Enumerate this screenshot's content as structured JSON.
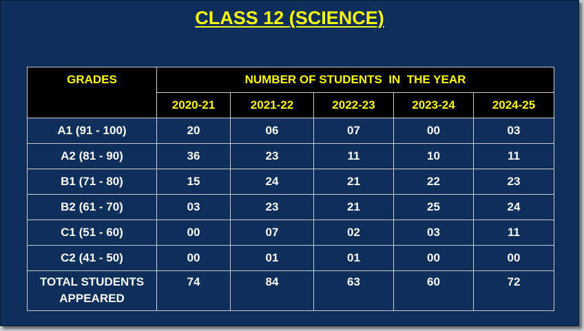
{
  "title": "CLASS 12 (SCIENCE)",
  "table": {
    "grades_header": "GRADES",
    "group_header": "NUMBER OF STUDENTS  IN  THE YEAR",
    "years": [
      "2020-21",
      "2021-22",
      "2022-23",
      "2023-24",
      "2024-25"
    ],
    "rows": [
      {
        "grade": "A1 (91 - 100)",
        "values": [
          "20",
          "06",
          "07",
          "00",
          "03"
        ]
      },
      {
        "grade": "A2 (81 - 90)",
        "values": [
          "36",
          "23",
          "11",
          "10",
          "11"
        ]
      },
      {
        "grade": "B1 (71 - 80)",
        "values": [
          "15",
          "24",
          "21",
          "22",
          "23"
        ]
      },
      {
        "grade": "B2 (61 - 70)",
        "values": [
          "03",
          "23",
          "21",
          "25",
          "24"
        ]
      },
      {
        "grade": "C1 (51 - 60)",
        "values": [
          "00",
          "07",
          "02",
          "03",
          "11"
        ]
      },
      {
        "grade": "C2 (41 - 50)",
        "values": [
          "00",
          "01",
          "01",
          "00",
          "00"
        ]
      }
    ],
    "total": {
      "label_line1": "TOTAL STUDENTS",
      "label_line2": "APPEARED",
      "values": [
        "74",
        "84",
        "63",
        "60",
        "72"
      ]
    }
  },
  "colors": {
    "background": "#0d2f5a",
    "header_fill": "#000000",
    "header_text": "#ffff00",
    "body_text": "#ffffff"
  }
}
